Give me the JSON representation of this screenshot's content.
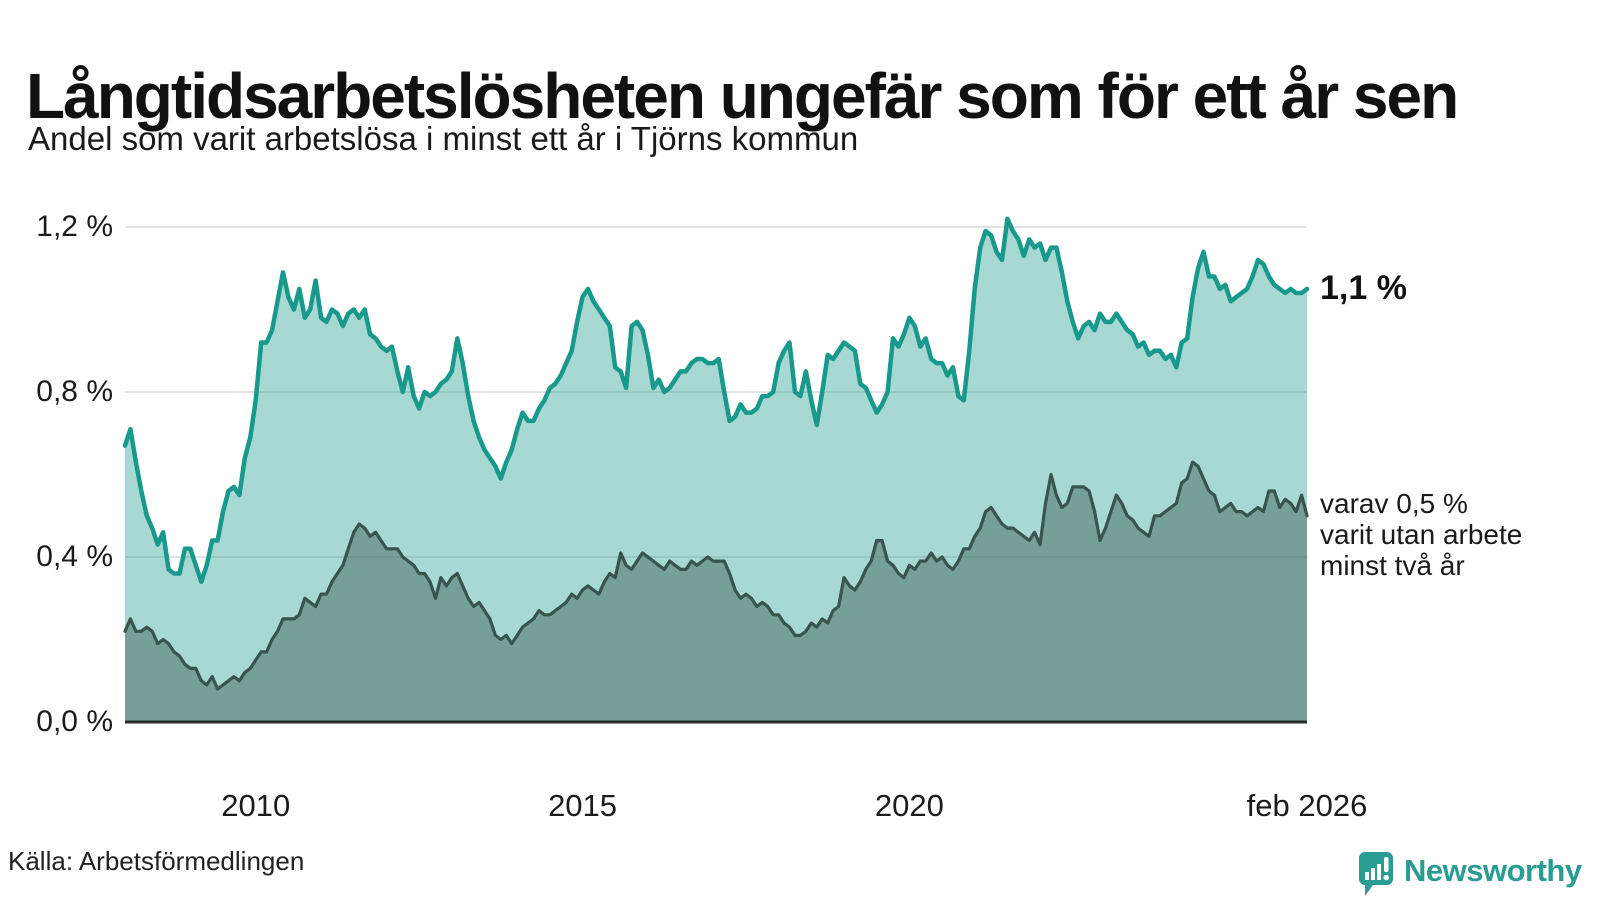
{
  "chart_data": {
    "type": "area",
    "title": "Långtidsarbetslösheten ungefär som för ett år sen",
    "subtitle": "Andel som varit arbetslösa i minst ett år i Tjörns kommun",
    "x_start": "2008-01",
    "x_end": "2026-02",
    "x_unit": "month",
    "grid": true,
    "ylim": [
      0,
      1.25
    ],
    "x_ticks": [
      {
        "label": "2010",
        "month_index": 24
      },
      {
        "label": "2015",
        "month_index": 84
      },
      {
        "label": "2020",
        "month_index": 144
      },
      {
        "label": "feb 2026",
        "month_index": 217
      }
    ],
    "y_ticks": [
      {
        "label": "1,2 %",
        "value": 1.2
      },
      {
        "label": "0,8 %",
        "value": 0.8
      },
      {
        "label": "0,4 %",
        "value": 0.4
      },
      {
        "label": "0,0 %",
        "value": 0.0
      }
    ],
    "series": [
      {
        "description": "arbetslösa i minst ett år",
        "end_label": "1,1 %",
        "line_color": "#18998b",
        "fill_color": "rgba(26,153,140,0.38)",
        "line_width": 4.5,
        "values": [
          0.67,
          0.71,
          0.63,
          0.56,
          0.5,
          0.47,
          0.43,
          0.46,
          0.37,
          0.36,
          0.36,
          0.42,
          0.42,
          0.38,
          0.34,
          0.38,
          0.44,
          0.44,
          0.51,
          0.56,
          0.57,
          0.55,
          0.64,
          0.69,
          0.78,
          0.92,
          0.92,
          0.95,
          1.02,
          1.09,
          1.03,
          1.0,
          1.05,
          0.98,
          1.0,
          1.07,
          0.98,
          0.97,
          1.0,
          0.99,
          0.96,
          0.99,
          1.0,
          0.98,
          1.0,
          0.94,
          0.93,
          0.91,
          0.9,
          0.91,
          0.85,
          0.8,
          0.86,
          0.79,
          0.76,
          0.8,
          0.79,
          0.8,
          0.82,
          0.83,
          0.85,
          0.93,
          0.87,
          0.79,
          0.73,
          0.69,
          0.66,
          0.64,
          0.62,
          0.59,
          0.63,
          0.66,
          0.71,
          0.75,
          0.73,
          0.73,
          0.76,
          0.78,
          0.81,
          0.82,
          0.84,
          0.87,
          0.9,
          0.97,
          1.03,
          1.05,
          1.02,
          1.0,
          0.98,
          0.96,
          0.86,
          0.85,
          0.81,
          0.96,
          0.97,
          0.95,
          0.89,
          0.81,
          0.83,
          0.8,
          0.81,
          0.83,
          0.85,
          0.85,
          0.87,
          0.88,
          0.88,
          0.87,
          0.87,
          0.88,
          0.8,
          0.73,
          0.74,
          0.77,
          0.75,
          0.75,
          0.76,
          0.79,
          0.79,
          0.8,
          0.87,
          0.9,
          0.92,
          0.8,
          0.79,
          0.85,
          0.78,
          0.72,
          0.8,
          0.89,
          0.88,
          0.9,
          0.92,
          0.91,
          0.9,
          0.82,
          0.81,
          0.78,
          0.75,
          0.77,
          0.8,
          0.93,
          0.91,
          0.94,
          0.98,
          0.96,
          0.91,
          0.93,
          0.88,
          0.87,
          0.87,
          0.84,
          0.86,
          0.79,
          0.78,
          0.9,
          1.05,
          1.15,
          1.19,
          1.18,
          1.14,
          1.12,
          1.22,
          1.19,
          1.17,
          1.13,
          1.17,
          1.15,
          1.16,
          1.12,
          1.15,
          1.15,
          1.09,
          1.02,
          0.97,
          0.93,
          0.96,
          0.97,
          0.95,
          0.99,
          0.97,
          0.97,
          0.99,
          0.97,
          0.95,
          0.94,
          0.91,
          0.92,
          0.89,
          0.9,
          0.9,
          0.88,
          0.89,
          0.86,
          0.92,
          0.93,
          1.03,
          1.1,
          1.14,
          1.08,
          1.08,
          1.05,
          1.06,
          1.02,
          1.03,
          1.04,
          1.05,
          1.08,
          1.12,
          1.11,
          1.08,
          1.06,
          1.05,
          1.04,
          1.05,
          1.04,
          1.04,
          1.05
        ]
      },
      {
        "description": "varit utan arbete minst två år",
        "end_label_lines": [
          "varav 0,5 %",
          "varit utan arbete",
          "minst två år"
        ],
        "line_color": "#37544f",
        "fill_color": "rgba(52,80,75,0.42)",
        "line_width": 3.2,
        "values": [
          0.22,
          0.25,
          0.22,
          0.22,
          0.23,
          0.22,
          0.19,
          0.2,
          0.19,
          0.17,
          0.16,
          0.14,
          0.13,
          0.13,
          0.1,
          0.09,
          0.11,
          0.08,
          0.09,
          0.1,
          0.11,
          0.1,
          0.12,
          0.13,
          0.15,
          0.17,
          0.17,
          0.2,
          0.22,
          0.25,
          0.25,
          0.25,
          0.26,
          0.3,
          0.29,
          0.28,
          0.31,
          0.31,
          0.34,
          0.36,
          0.38,
          0.42,
          0.46,
          0.48,
          0.47,
          0.45,
          0.46,
          0.44,
          0.42,
          0.42,
          0.42,
          0.4,
          0.39,
          0.38,
          0.36,
          0.36,
          0.34,
          0.3,
          0.35,
          0.33,
          0.35,
          0.36,
          0.33,
          0.3,
          0.28,
          0.29,
          0.27,
          0.25,
          0.21,
          0.2,
          0.21,
          0.19,
          0.21,
          0.23,
          0.24,
          0.25,
          0.27,
          0.26,
          0.26,
          0.27,
          0.28,
          0.29,
          0.31,
          0.3,
          0.32,
          0.33,
          0.32,
          0.31,
          0.34,
          0.36,
          0.35,
          0.41,
          0.38,
          0.37,
          0.39,
          0.41,
          0.4,
          0.39,
          0.38,
          0.37,
          0.39,
          0.38,
          0.37,
          0.37,
          0.39,
          0.38,
          0.39,
          0.4,
          0.39,
          0.39,
          0.39,
          0.36,
          0.32,
          0.3,
          0.31,
          0.3,
          0.28,
          0.29,
          0.28,
          0.26,
          0.26,
          0.24,
          0.23,
          0.21,
          0.21,
          0.22,
          0.24,
          0.23,
          0.25,
          0.24,
          0.27,
          0.28,
          0.35,
          0.33,
          0.32,
          0.34,
          0.37,
          0.39,
          0.44,
          0.44,
          0.39,
          0.38,
          0.36,
          0.35,
          0.38,
          0.37,
          0.39,
          0.39,
          0.41,
          0.39,
          0.4,
          0.38,
          0.37,
          0.39,
          0.42,
          0.42,
          0.45,
          0.47,
          0.51,
          0.52,
          0.5,
          0.48,
          0.47,
          0.47,
          0.46,
          0.45,
          0.44,
          0.46,
          0.43,
          0.53,
          0.6,
          0.55,
          0.52,
          0.53,
          0.57,
          0.57,
          0.57,
          0.56,
          0.51,
          0.44,
          0.47,
          0.51,
          0.55,
          0.53,
          0.5,
          0.49,
          0.47,
          0.46,
          0.45,
          0.5,
          0.5,
          0.51,
          0.52,
          0.53,
          0.58,
          0.59,
          0.63,
          0.62,
          0.59,
          0.56,
          0.55,
          0.51,
          0.52,
          0.53,
          0.51,
          0.51,
          0.5,
          0.51,
          0.52,
          0.51,
          0.56,
          0.56,
          0.52,
          0.54,
          0.53,
          0.51,
          0.55,
          0.5
        ]
      }
    ]
  },
  "footer": {
    "source": "Källa: Arbetsförmedlingen",
    "logo_text": "Newsworthy",
    "logo_color": "#2a9d93"
  },
  "style_colors": {
    "grid_line": "#e2e5e4",
    "axis_line": "#2b2b2b",
    "text": "#1b1b1b"
  }
}
